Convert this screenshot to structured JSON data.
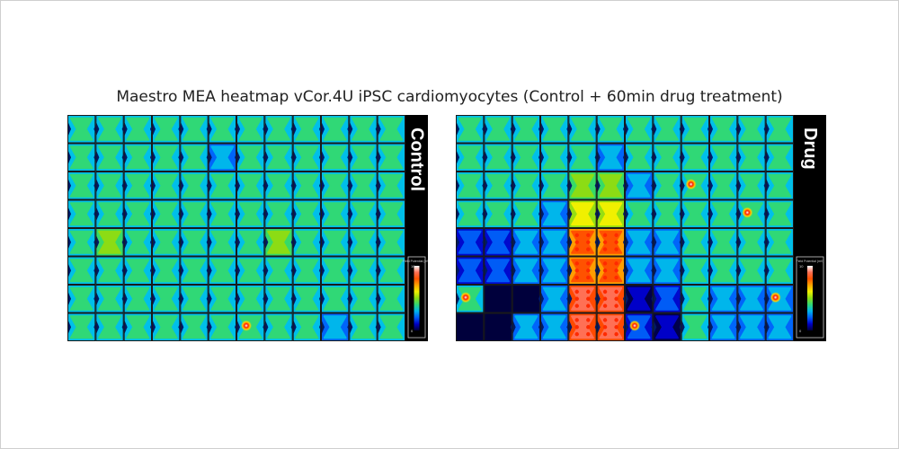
{
  "chart_data": {
    "type": "heatmap",
    "title": "Maestro MEA heatmap vCor.4U iPSC cardiomyocytes (Control + 60min drug treatment)",
    "rows": 8,
    "cols": 12,
    "value_range": [
      0,
      10
    ],
    "legend": {
      "min_label": "0",
      "max_label": "10",
      "caption": "Field Potential (mV)",
      "position": "bottom-right"
    },
    "panels": [
      {
        "label": "Control",
        "wells": [
          [
            4,
            4,
            4,
            4,
            4,
            4,
            4,
            4,
            4,
            4,
            4,
            4
          ],
          [
            4,
            4,
            4,
            4,
            4,
            3,
            4,
            4,
            4,
            4,
            4,
            4
          ],
          [
            4,
            4,
            4,
            4,
            4,
            4,
            4,
            4,
            4,
            4,
            4,
            4
          ],
          [
            4,
            4,
            4,
            4,
            4,
            4,
            4,
            4,
            4,
            4,
            4,
            4
          ],
          [
            4,
            5,
            4,
            4,
            4,
            4,
            4,
            5,
            4,
            4,
            4,
            4
          ],
          [
            4,
            4,
            4,
            4,
            4,
            4,
            4,
            4,
            4,
            4,
            4,
            4
          ],
          [
            4,
            4,
            4,
            4,
            4,
            4,
            4,
            4,
            4,
            4,
            4,
            4
          ],
          [
            4,
            4,
            4,
            4,
            4,
            4,
            4,
            4,
            4,
            3,
            4,
            4
          ]
        ],
        "hotspots": [
          [
            7,
            6
          ]
        ]
      },
      {
        "label": "Drug",
        "wells": [
          [
            4,
            4,
            4,
            4,
            4,
            4,
            4,
            4,
            4,
            4,
            4,
            4
          ],
          [
            4,
            4,
            4,
            4,
            4,
            3,
            4,
            4,
            4,
            4,
            4,
            4
          ],
          [
            4,
            4,
            4,
            4,
            5,
            5,
            3,
            4,
            4,
            4,
            4,
            4
          ],
          [
            4,
            4,
            4,
            3,
            6,
            6,
            4,
            4,
            4,
            4,
            4,
            4
          ],
          [
            2,
            2,
            3,
            3,
            8,
            8,
            3,
            3,
            4,
            4,
            4,
            4
          ],
          [
            2,
            2,
            3,
            3,
            8,
            8,
            3,
            3,
            4,
            4,
            4,
            4
          ],
          [
            4,
            0,
            0,
            3,
            9,
            9,
            1,
            2,
            4,
            3,
            3,
            3
          ],
          [
            0,
            0,
            3,
            3,
            9,
            9,
            2,
            1,
            4,
            3,
            3,
            3
          ]
        ],
        "hotspots": [
          [
            2,
            8
          ],
          [
            3,
            10
          ],
          [
            6,
            0
          ],
          [
            6,
            11
          ],
          [
            7,
            6
          ]
        ]
      }
    ]
  }
}
